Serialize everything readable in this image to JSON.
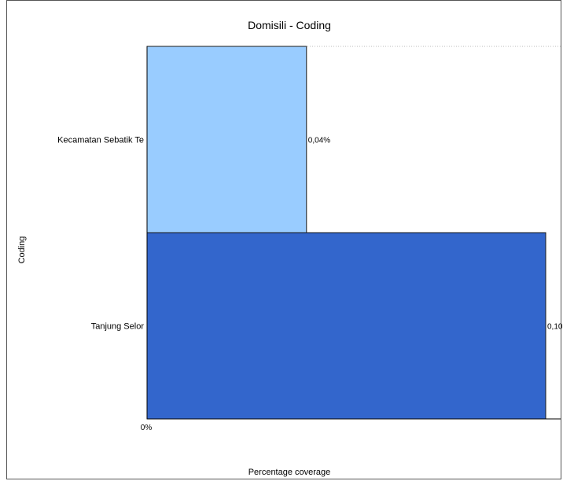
{
  "chart_data": {
    "type": "bar",
    "orientation": "horizontal",
    "title": "Domisili - Coding",
    "xlabel": "Percentage coverage",
    "ylabel": "Coding",
    "x_tick_labels": [
      "0%"
    ],
    "categories": [
      "Kecamatan Sebatik Te",
      "Tanjung Selor"
    ],
    "values": [
      0.04,
      0.1
    ],
    "value_labels": [
      "0,04%",
      "0,10"
    ],
    "colors": [
      "#99ccff",
      "#3366cc"
    ],
    "xlim": [
      0,
      0.1
    ],
    "grid": false,
    "legend": false
  }
}
